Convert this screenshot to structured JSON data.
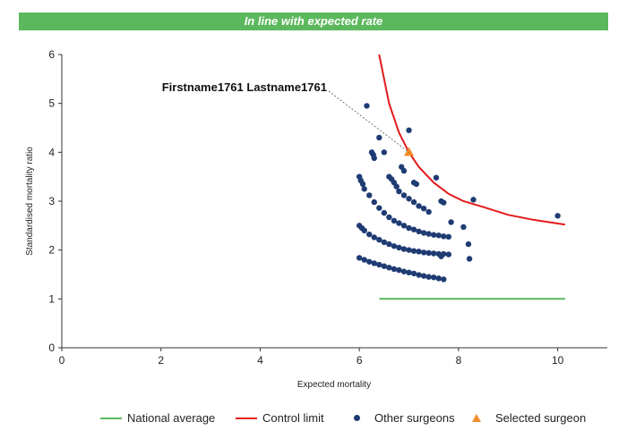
{
  "header": {
    "title": "In line with expected rate"
  },
  "colors": {
    "banner": "#5cb85c",
    "national_average": "#5cb85c",
    "control_limit": "#e31a1c",
    "other_surgeons": "#1f3b73",
    "selected_surgeon": "#f28c28"
  },
  "chart_data": {
    "type": "scatter",
    "title": "In line with expected rate",
    "xlabel": "Expected mortality",
    "ylabel": "Standardised mortality ratio",
    "xlim": [
      0,
      11
    ],
    "ylim": [
      0,
      6
    ],
    "xticks": [
      "0",
      "2",
      "4",
      "6",
      "8",
      "10"
    ],
    "yticks": [
      "0",
      "1",
      "2",
      "3",
      "4",
      "5",
      "6"
    ],
    "grid": false,
    "legend_position": "bottom",
    "annotation": {
      "text": "Firstname1761 Lastname1761",
      "x": 7.0,
      "y": 4.0
    },
    "series": [
      {
        "name": "National average",
        "kind": "line",
        "x": [
          6.4,
          10.15
        ],
        "y": [
          1.0,
          1.0
        ]
      },
      {
        "name": "Control limit",
        "kind": "line",
        "x": [
          6.4,
          6.6,
          6.8,
          7.0,
          7.2,
          7.5,
          7.8,
          8.1,
          8.5,
          9.0,
          9.5,
          10.15
        ],
        "y": [
          6.0,
          5.0,
          4.4,
          4.0,
          3.7,
          3.38,
          3.15,
          3.0,
          2.88,
          2.72,
          2.62,
          2.52
        ]
      },
      {
        "name": "Other surgeons",
        "kind": "scatter",
        "x": [
          6.0,
          6.1,
          6.2,
          6.3,
          6.4,
          6.5,
          6.6,
          6.7,
          6.8,
          6.9,
          7.0,
          7.1,
          7.2,
          7.3,
          7.4,
          7.5,
          7.6,
          7.7,
          6.0,
          6.05,
          6.1,
          6.2,
          6.3,
          6.4,
          6.5,
          6.6,
          6.7,
          6.8,
          6.9,
          7.0,
          7.1,
          7.2,
          7.3,
          7.4,
          7.5,
          7.6,
          7.7,
          7.8,
          6.0,
          6.03,
          6.07,
          6.1,
          6.2,
          6.3,
          6.4,
          6.5,
          6.6,
          6.7,
          6.8,
          6.9,
          7.0,
          7.1,
          7.2,
          7.3,
          7.4,
          7.5,
          7.6,
          7.7,
          7.8,
          6.6,
          6.65,
          6.7,
          6.75,
          6.8,
          6.9,
          7.0,
          7.1,
          7.2,
          7.3,
          7.4,
          6.25,
          6.28,
          6.3,
          6.15,
          6.4,
          6.5,
          6.85,
          6.9,
          7.0,
          7.55,
          7.1,
          7.15,
          7.65,
          7.7,
          8.1,
          8.2,
          8.3,
          7.85,
          7.65,
          8.22,
          10.0
        ],
        "y": [
          1.84,
          1.8,
          1.76,
          1.73,
          1.7,
          1.67,
          1.64,
          1.61,
          1.59,
          1.56,
          1.54,
          1.52,
          1.49,
          1.47,
          1.45,
          1.44,
          1.42,
          1.4,
          2.5,
          2.45,
          2.4,
          2.32,
          2.26,
          2.21,
          2.16,
          2.12,
          2.08,
          2.05,
          2.02,
          2.0,
          1.98,
          1.97,
          1.95,
          1.94,
          1.93,
          1.92,
          1.92,
          1.91,
          3.5,
          3.42,
          3.35,
          3.25,
          3.12,
          2.98,
          2.86,
          2.76,
          2.67,
          2.6,
          2.55,
          2.5,
          2.45,
          2.42,
          2.38,
          2.35,
          2.33,
          2.31,
          2.3,
          2.28,
          2.27,
          3.5,
          3.45,
          3.38,
          3.3,
          3.2,
          3.12,
          3.05,
          2.98,
          2.9,
          2.85,
          2.78,
          4.0,
          3.95,
          3.88,
          4.95,
          4.3,
          4.0,
          3.7,
          3.62,
          4.45,
          3.48,
          3.38,
          3.35,
          3.0,
          2.97,
          2.47,
          2.12,
          3.03,
          2.57,
          1.87,
          1.82,
          2.7
        ]
      },
      {
        "name": "Selected surgeon",
        "kind": "marker",
        "x": [
          7.0
        ],
        "y": [
          4.0
        ]
      }
    ]
  },
  "legend": {
    "national_average": "National average",
    "control_limit": "Control limit",
    "other_surgeons": "Other surgeons",
    "selected_surgeon": "Selected surgeon"
  }
}
